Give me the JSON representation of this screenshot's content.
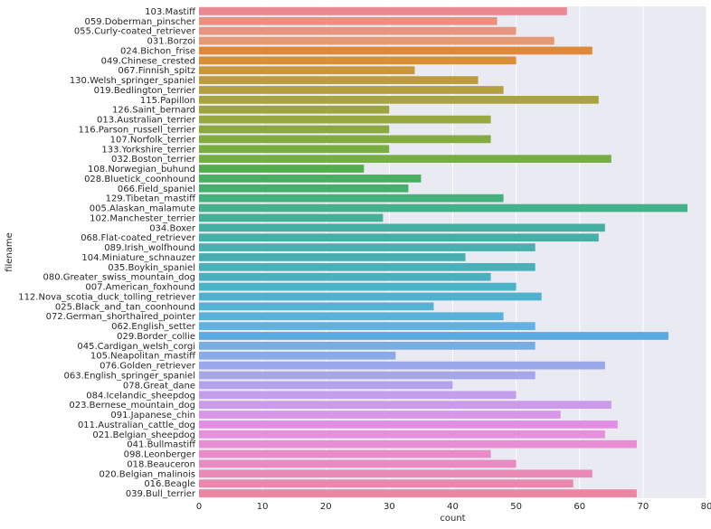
{
  "chart_data": {
    "type": "bar",
    "orientation": "horizontal",
    "xlabel": "count",
    "ylabel": "filename",
    "xlim": [
      0,
      80
    ],
    "xticks": [
      0,
      10,
      20,
      30,
      40,
      50,
      60,
      70,
      80
    ],
    "grid": true,
    "categories": [
      "103.Mastiff",
      "059.Doberman_pinscher",
      "055.Curly-coated_retriever",
      "031.Borzoi",
      "024.Bichon_frise",
      "049.Chinese_crested",
      "067.Finnish_spitz",
      "130.Welsh_springer_spaniel",
      "019.Bedlington_terrier",
      "115.Papillon",
      "126.Saint_bernard",
      "013.Australian_terrier",
      "116.Parson_russell_terrier",
      "107.Norfolk_terrier",
      "133.Yorkshire_terrier",
      "032.Boston_terrier",
      "108.Norwegian_buhund",
      "028.Bluetick_coonhound",
      "066.Field_spaniel",
      "129.Tibetan_mastiff",
      "005.Alaskan_malamute",
      "102.Manchester_terrier",
      "034.Boxer",
      "068.Flat-coated_retriever",
      "089.Irish_wolfhound",
      "104.Miniature_schnauzer",
      "035.Boykin_spaniel",
      "080.Greater_swiss_mountain_dog",
      "007.American_foxhound",
      "112.Nova_scotia_duck_tolling_retriever",
      "025.Black_and_tan_coonhound",
      "072.German_shorthaired_pointer",
      "062.English_setter",
      "029.Border_collie",
      "045.Cardigan_welsh_corgi",
      "105.Neapolitan_mastiff",
      "076.Golden_retriever",
      "063.English_springer_spaniel",
      "078.Great_dane",
      "084.Icelandic_sheepdog",
      "023.Bernese_mountain_dog",
      "091.Japanese_chin",
      "011.Australian_cattle_dog",
      "021.Belgian_sheepdog",
      "041.Bullmastiff",
      "098.Leonberger",
      "018.Beauceron",
      "020.Belgian_malinois",
      "016.Beagle",
      "039.Bull_terrier"
    ],
    "values": [
      58,
      47,
      50,
      56,
      62,
      50,
      34,
      44,
      48,
      63,
      30,
      46,
      30,
      46,
      30,
      65,
      26,
      35,
      33,
      48,
      77,
      29,
      64,
      63,
      53,
      42,
      53,
      46,
      50,
      54,
      37,
      48,
      53,
      74,
      53,
      31,
      64,
      53,
      40,
      50,
      65,
      57,
      66,
      64,
      69,
      46,
      50,
      62,
      59,
      69
    ],
    "colors": [
      "#e98891",
      "#e8917d",
      "#e69680",
      "#e49a74",
      "#e0883a",
      "#db8e35",
      "#c8973a",
      "#be9c3c",
      "#b39f3e",
      "#a8a33d",
      "#9fa53e",
      "#96a83e",
      "#8ca93f",
      "#83ab40",
      "#7aae43",
      "#74ae45",
      "#52ad4d",
      "#4aae62",
      "#46af6e",
      "#44b07b",
      "#44b18a",
      "#44b096",
      "#45b09f",
      "#45b0a6",
      "#48b0ae",
      "#48afb1",
      "#4ab0b8",
      "#4bb0bd",
      "#4cb2c5",
      "#4eb2cc",
      "#52b3d4",
      "#57b3db",
      "#60b2e0",
      "#5aa9e0",
      "#78ade2",
      "#8aabe6",
      "#9ba8e8",
      "#a6a6ea",
      "#b3a3ec",
      "#c29eec",
      "#cc9aeb",
      "#d895ea",
      "#e38ee5",
      "#e68fdd",
      "#e88cd4",
      "#e88bc8",
      "#e88bc0",
      "#e889b6",
      "#e987ad",
      "#ea86a2"
    ]
  }
}
